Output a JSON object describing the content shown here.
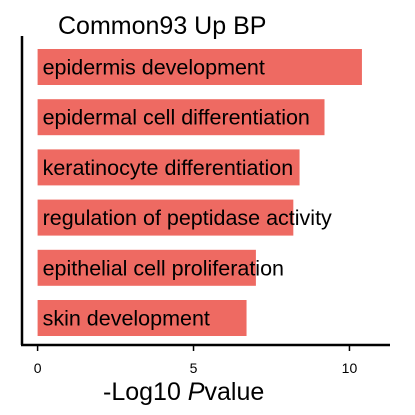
{
  "chart_data": {
    "type": "bar",
    "orientation": "horizontal",
    "title": "Common93 Up BP",
    "xlabel": {
      "prefix": "-Log10 ",
      "italic": "P",
      "suffix": "value"
    },
    "ylabel": "",
    "categories": [
      "epidermis development",
      "epidermal cell differentiation",
      "keratinocyte differentiation",
      "regulation of peptidase activity",
      "epithelial cell proliferation",
      "skin development"
    ],
    "values": [
      10.4,
      9.2,
      8.4,
      8.2,
      7.0,
      6.7
    ],
    "xlim": [
      -0.5,
      11.3
    ],
    "x_ticks": [
      0,
      5,
      10
    ],
    "grid": false,
    "bar_color": "#EE6A62"
  }
}
